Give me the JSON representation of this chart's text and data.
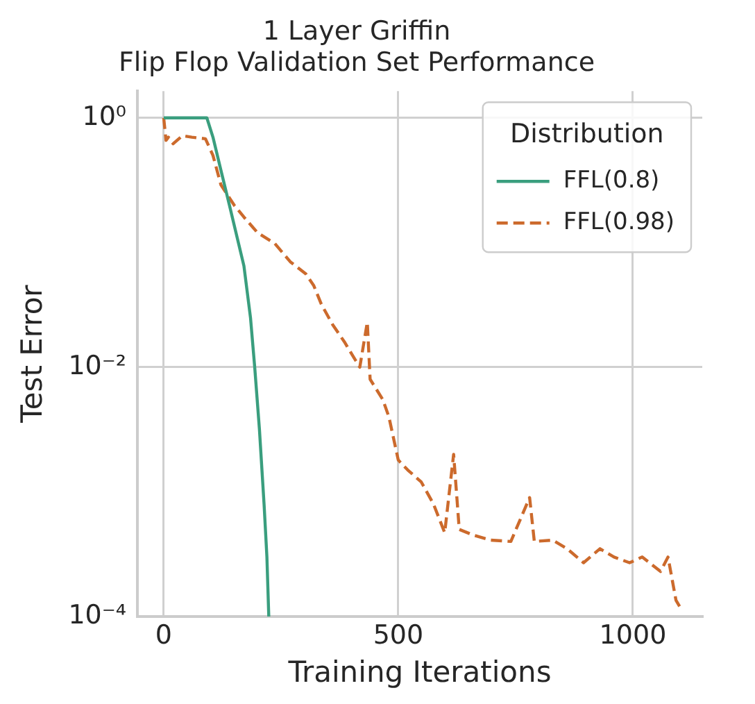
{
  "chart_data": {
    "type": "line",
    "title": "1 Layer Griffin",
    "subtitle": "Flip Flop Validation Set Performance",
    "xlabel": "Training Iterations",
    "ylabel": "Test Error",
    "legend_title": "Distribution",
    "log": "y",
    "grid": true,
    "legend": "top right",
    "marker": "none",
    "xlim": [
      -56,
      1148
    ],
    "xticks": [
      0,
      500,
      1000
    ],
    "ylim": [
      0.0001,
      1.64
    ],
    "yticks": [
      {
        "value": 1,
        "label": "10⁰"
      },
      {
        "value": 0.01,
        "label": "10⁻²"
      },
      {
        "value": 0.0001,
        "label": "10⁻⁴"
      }
    ],
    "series": [
      {
        "name": "FFL(0.8)",
        "color": "#3a9e7e",
        "line_style": "solid",
        "x": [
          0,
          92,
          105,
          122,
          140,
          171,
          185,
          194,
          204,
          214,
          220,
          224
        ],
        "values": [
          1,
          1,
          0.7,
          0.38,
          0.2,
          0.065,
          0.025,
          0.01,
          0.0032,
          0.00079,
          0.0003,
          0.0001
        ]
      },
      {
        "name": "FFL(0.98)",
        "color": "#cc6a2c",
        "line_style": "dashed",
        "x": [
          0,
          5,
          10,
          20,
          40,
          60,
          89,
          105,
          122,
          150,
          171,
          200,
          237,
          270,
          303,
          320,
          336,
          360,
          385,
          405,
          418,
          434,
          440,
          467,
          480,
          500,
          520,
          549,
          575,
          599,
          618,
          630,
          660,
          697,
          740,
          780,
          790,
          829,
          860,
          895,
          930,
          960,
          993,
          1020,
          1059,
          1075,
          1092,
          1100
        ],
        "values": [
          1,
          0.66,
          0.7,
          0.62,
          0.72,
          0.7,
          0.68,
          0.5,
          0.29,
          0.2,
          0.16,
          0.12,
          0.098,
          0.07,
          0.056,
          0.045,
          0.032,
          0.022,
          0.016,
          0.012,
          0.01,
          0.023,
          0.008,
          0.0055,
          0.004,
          0.0018,
          0.0015,
          0.0012,
          0.0008,
          0.00047,
          0.002,
          0.0005,
          0.00045,
          0.00041,
          0.0004,
          0.0009,
          0.0004,
          0.00041,
          0.00035,
          0.00027,
          0.00035,
          0.0003,
          0.00027,
          0.0003,
          0.00023,
          0.0003,
          0.000135,
          0.00012
        ]
      }
    ]
  }
}
